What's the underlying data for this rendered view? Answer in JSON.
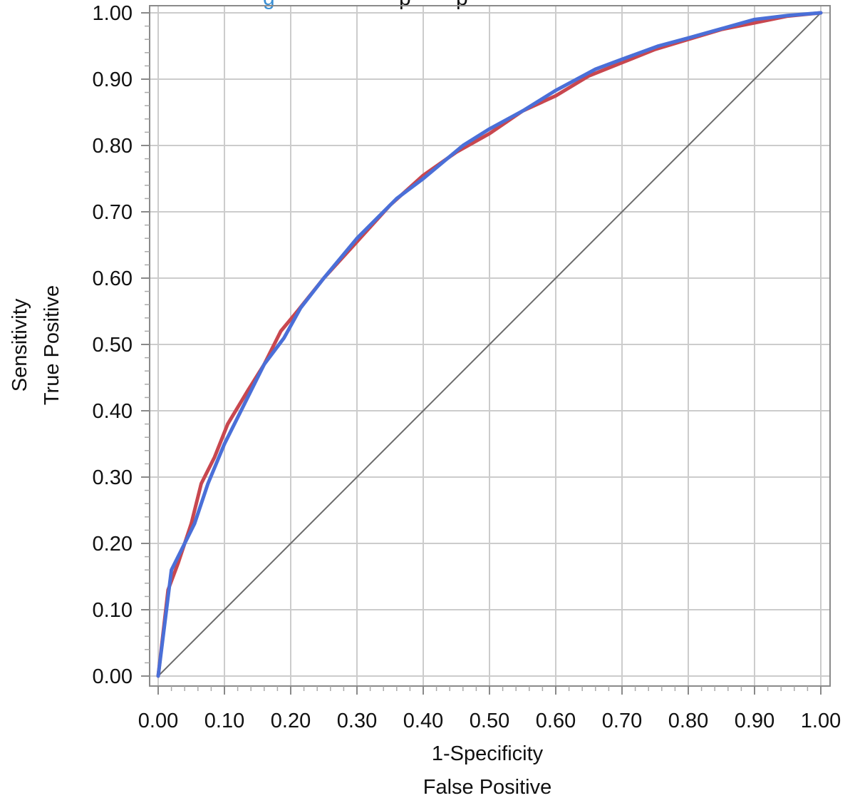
{
  "chart_data": {
    "type": "line",
    "title": "",
    "xlabel": [
      "1-Specificity",
      "False Positive"
    ],
    "ylabel": [
      "Sensitivity",
      "True Positive"
    ],
    "xlim": [
      0,
      1
    ],
    "ylim": [
      0,
      1
    ],
    "x_ticks": [
      "0.00",
      "0.10",
      "0.20",
      "0.30",
      "0.40",
      "0.50",
      "0.60",
      "0.70",
      "0.80",
      "0.90",
      "1.00"
    ],
    "y_ticks": [
      "0.00",
      "0.10",
      "0.20",
      "0.30",
      "0.40",
      "0.50",
      "0.60",
      "0.70",
      "0.80",
      "0.90",
      "1.00"
    ],
    "grid": true,
    "legend": "none",
    "colors": {
      "grid": "#cccccc",
      "frame": "#8a8a8a",
      "minor_tick": "#aaaaaa",
      "diagonal": "#6b6b6b",
      "title_fragment": "#3a8fd4"
    },
    "series": [
      {
        "color": "#c8474f",
        "x": [
          0.0,
          0.015,
          0.03,
          0.05,
          0.065,
          0.085,
          0.105,
          0.135,
          0.16,
          0.185,
          0.21,
          0.25,
          0.3,
          0.35,
          0.4,
          0.45,
          0.5,
          0.55,
          0.6,
          0.65,
          0.7,
          0.75,
          0.8,
          0.85,
          0.9,
          0.95,
          1.0
        ],
        "y": [
          0.0,
          0.13,
          0.17,
          0.23,
          0.29,
          0.33,
          0.38,
          0.43,
          0.47,
          0.52,
          0.55,
          0.6,
          0.655,
          0.71,
          0.755,
          0.79,
          0.818,
          0.852,
          0.875,
          0.905,
          0.925,
          0.945,
          0.96,
          0.975,
          0.985,
          0.995,
          1.0
        ]
      },
      {
        "color": "#4a6fd8",
        "x": [
          0.0,
          0.02,
          0.035,
          0.055,
          0.075,
          0.1,
          0.13,
          0.16,
          0.19,
          0.215,
          0.25,
          0.3,
          0.36,
          0.4,
          0.46,
          0.5,
          0.55,
          0.6,
          0.66,
          0.7,
          0.755,
          0.8,
          0.85,
          0.9,
          0.95,
          1.0
        ],
        "y": [
          0.0,
          0.16,
          0.19,
          0.23,
          0.29,
          0.35,
          0.41,
          0.47,
          0.51,
          0.555,
          0.6,
          0.66,
          0.72,
          0.75,
          0.8,
          0.825,
          0.852,
          0.883,
          0.915,
          0.93,
          0.95,
          0.962,
          0.976,
          0.99,
          0.996,
          1.0
        ]
      }
    ],
    "reference_line": {
      "x": [
        0,
        1
      ],
      "y": [
        0,
        1
      ]
    }
  }
}
